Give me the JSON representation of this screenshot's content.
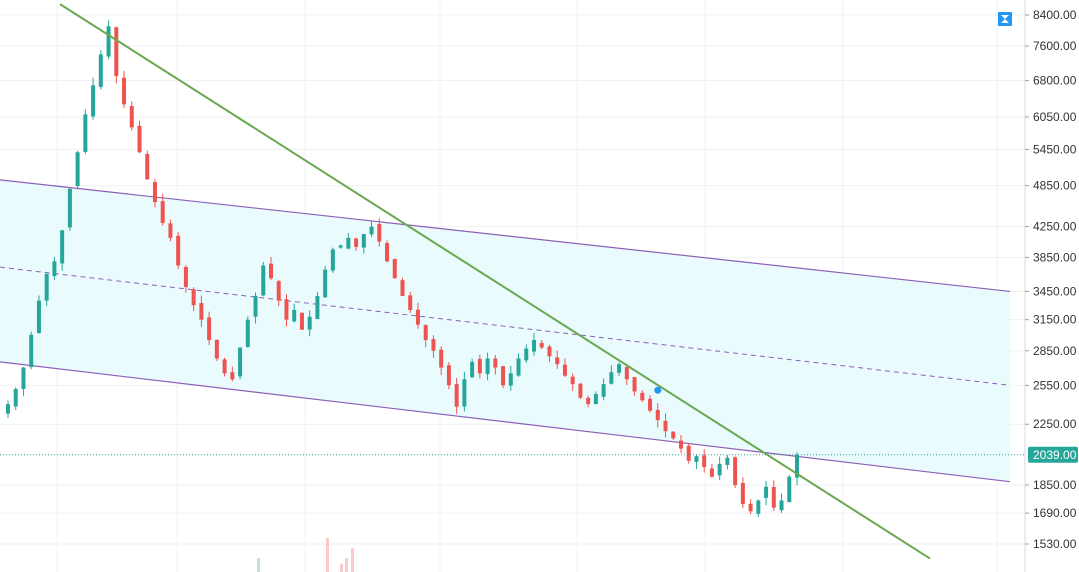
{
  "chart_data": {
    "type": "candlestick",
    "title": "",
    "xlabel": "",
    "ylabel": "",
    "y_scale": "log",
    "ylim": [
      1450,
      8700
    ],
    "grid": true,
    "y_ticks": [
      "8400.00",
      "7600.00",
      "6800.00",
      "6050.00",
      "5450.00",
      "4850.00",
      "4250.00",
      "3850.00",
      "3450.00",
      "3150.00",
      "2850.00",
      "2550.00",
      "2250.00",
      "1850.00",
      "1690.00",
      "1530.00"
    ],
    "last_price": "2039.00",
    "closes": [
      2400,
      2520,
      2700,
      3000,
      3350,
      3650,
      3800,
      4200,
      4800,
      5400,
      6100,
      6700,
      7400,
      8100,
      6900,
      6300,
      5850,
      5400,
      4950,
      4600,
      4300,
      4100,
      3750,
      3500,
      3300,
      3150,
      2950,
      2780,
      2650,
      2600,
      2880,
      3150,
      3400,
      3750,
      3600,
      3350,
      3150,
      3250,
      3050,
      3180,
      3400,
      3700,
      3950,
      4000,
      4100,
      3980,
      4150,
      4250,
      4050,
      3800,
      3600,
      3400,
      3250,
      3100,
      2950,
      2850,
      2700,
      2550,
      2380,
      2600,
      2750,
      2650,
      2780,
      2700,
      2550,
      2650,
      2780,
      2870,
      2950,
      2880,
      2800,
      2730,
      2630,
      2560,
      2450,
      2400,
      2480,
      2560,
      2660,
      2730,
      2600,
      2500,
      2430,
      2350,
      2280,
      2200,
      2150,
      2080,
      2000,
      2030,
      1960,
      1900,
      1980,
      2020,
      1850,
      1740,
      1700,
      1760,
      1840,
      1720,
      1760,
      1900,
      2039
    ],
    "channel": {
      "upper": [
        [
          0,
          4940
        ],
        [
          1010,
          3450
        ]
      ],
      "middle": [
        [
          0,
          3730
        ],
        [
          1010,
          2550
        ]
      ],
      "lower": [
        [
          0,
          2750
        ],
        [
          1010,
          1870
        ]
      ]
    },
    "trendline": [
      [
        60,
        8700
      ],
      [
        930,
        1460
      ]
    ],
    "marker": {
      "index": 84,
      "price": 2510
    },
    "colors": {
      "up": "#26a69a",
      "down": "#ef5350",
      "channel_line": "#8e5fb8",
      "channel_fill": "#e9fbfd",
      "trend": "#6aa84f",
      "last_price": "#26a69a",
      "marker": "#2196f3"
    },
    "toolbar_icon": "collapse-icon"
  }
}
